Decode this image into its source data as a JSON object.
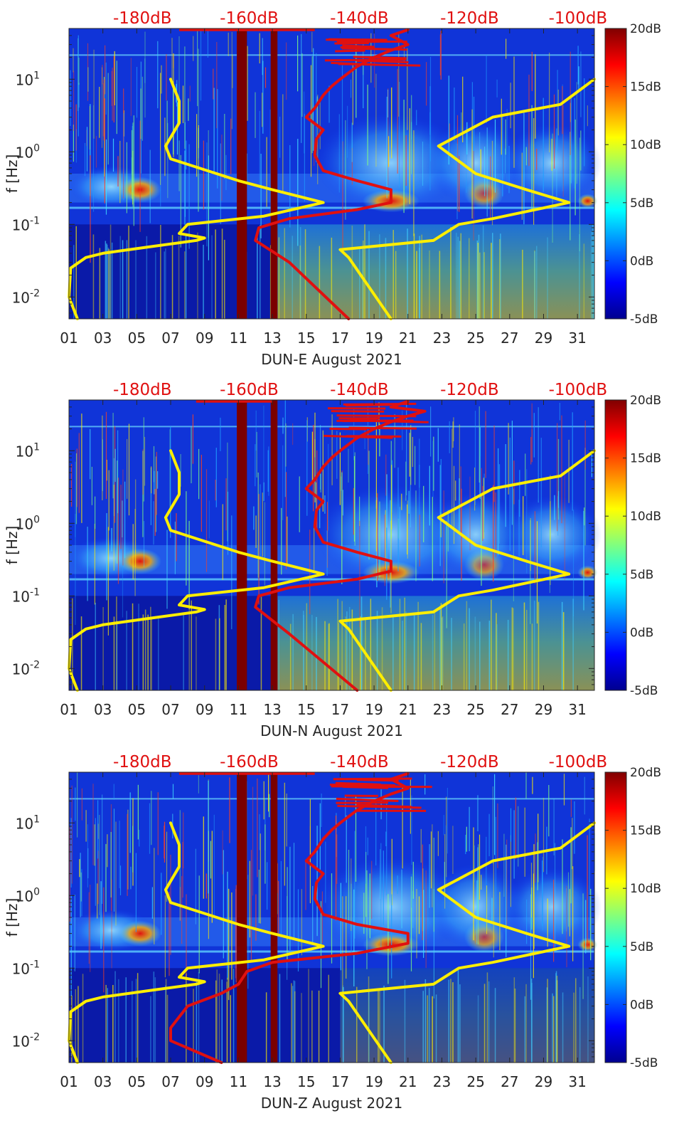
{
  "chart_data": [
    {
      "type": "heatmap",
      "station": "DUN-E",
      "title": "DUN-E August 2021",
      "xlabel": "DUN-E August 2021",
      "ylabel": "f [Hz]",
      "x_ticks": [
        "01",
        "03",
        "05",
        "07",
        "09",
        "11",
        "13",
        "15",
        "17",
        "19",
        "21",
        "23",
        "25",
        "27",
        "29",
        "31"
      ],
      "x_tick_days": [
        1,
        3,
        5,
        7,
        9,
        11,
        13,
        15,
        17,
        19,
        21,
        23,
        25,
        27,
        29,
        31
      ],
      "xlim": [
        1,
        32
      ],
      "y_scale": "log",
      "ylim": [
        0.005,
        50
      ],
      "y_ticks": [
        {
          "label": "10",
          "exp": "-2",
          "value": 0.01
        },
        {
          "label": "10",
          "exp": "-1",
          "value": 0.1
        },
        {
          "label": "10",
          "exp": "0",
          "value": 1
        },
        {
          "label": "10",
          "exp": "1",
          "value": 10
        }
      ],
      "top_ticks": [
        "-180dB",
        "-160dB",
        "-140dB",
        "-120dB",
        "-100dB"
      ],
      "top_tick_days": [
        5.5,
        11.8,
        18.3,
        24.8,
        31.2
      ],
      "colorbar": {
        "labels": [
          "20dB",
          "15dB",
          "10dB",
          "5dB",
          "0dB",
          "-5dB"
        ],
        "min": -5,
        "max": 20
      },
      "gaps": [
        {
          "from": 10.9,
          "to": 11.5
        },
        {
          "from": 12.9,
          "to": 13.3
        }
      ],
      "series": [
        {
          "name": "yellow-low-noise-model",
          "color": "#ffee00",
          "points": [
            [
              1.5,
              0.005
            ],
            [
              1,
              0.01
            ],
            [
              1.1,
              0.025
            ],
            [
              2,
              0.035
            ],
            [
              3,
              0.04
            ],
            [
              6,
              0.05
            ],
            [
              8.5,
              0.06
            ],
            [
              9,
              0.065
            ],
            [
              7.5,
              0.075
            ],
            [
              8,
              0.1
            ],
            [
              12.5,
              0.13
            ],
            [
              16,
              0.2
            ],
            [
              13,
              0.3
            ],
            [
              11,
              0.4
            ],
            [
              7,
              0.8
            ],
            [
              6.7,
              1.2
            ],
            [
              7.5,
              2.5
            ],
            [
              7.5,
              5
            ],
            [
              7,
              10
            ]
          ]
        },
        {
          "name": "yellow-high-noise-model",
          "color": "#ffee00",
          "points": [
            [
              20,
              0.005
            ],
            [
              17.5,
              0.035
            ],
            [
              17,
              0.045
            ],
            [
              22.5,
              0.06
            ],
            [
              24,
              0.1
            ],
            [
              26,
              0.12
            ],
            [
              30.5,
              0.2
            ],
            [
              28,
              0.3
            ],
            [
              25,
              0.5
            ],
            [
              22.8,
              1.2
            ],
            [
              26,
              3
            ],
            [
              30,
              4.5
            ],
            [
              32,
              10
            ]
          ]
        },
        {
          "name": "red-median-psd",
          "color": "#e01010",
          "points": [
            [
              17.5,
              0.005
            ],
            [
              14,
              0.03
            ],
            [
              12,
              0.06
            ],
            [
              12.2,
              0.09
            ],
            [
              14,
              0.12
            ],
            [
              18,
              0.16
            ],
            [
              20,
              0.2
            ],
            [
              20,
              0.3
            ],
            [
              18,
              0.4
            ],
            [
              16,
              0.55
            ],
            [
              15.5,
              0.9
            ],
            [
              15.6,
              1.5
            ],
            [
              16,
              2
            ],
            [
              15,
              3
            ],
            [
              15.5,
              4
            ],
            [
              16,
              6
            ],
            [
              16.5,
              8
            ],
            [
              17,
              10
            ],
            [
              18,
              15
            ],
            [
              19,
              20
            ],
            [
              20,
              25
            ],
            [
              21,
              30
            ],
            [
              20,
              40
            ],
            [
              21,
              48
            ]
          ]
        }
      ]
    },
    {
      "type": "heatmap",
      "station": "DUN-N",
      "title": "DUN-N August 2021",
      "xlabel": "DUN-N August 2021",
      "ylabel": "f [Hz]",
      "x_ticks": [
        "01",
        "03",
        "05",
        "07",
        "09",
        "11",
        "13",
        "15",
        "17",
        "19",
        "21",
        "23",
        "25",
        "27",
        "29",
        "31"
      ],
      "x_tick_days": [
        1,
        3,
        5,
        7,
        9,
        11,
        13,
        15,
        17,
        19,
        21,
        23,
        25,
        27,
        29,
        31
      ],
      "xlim": [
        1,
        32
      ],
      "y_scale": "log",
      "ylim": [
        0.005,
        50
      ],
      "y_ticks": [
        {
          "label": "10",
          "exp": "-2",
          "value": 0.01
        },
        {
          "label": "10",
          "exp": "-1",
          "value": 0.1
        },
        {
          "label": "10",
          "exp": "0",
          "value": 1
        },
        {
          "label": "10",
          "exp": "1",
          "value": 10
        }
      ],
      "top_ticks": [
        "-180dB",
        "-160dB",
        "-140dB",
        "-120dB",
        "-100dB"
      ],
      "top_tick_days": [
        5.5,
        11.8,
        18.3,
        24.8,
        31.2
      ],
      "colorbar": {
        "labels": [
          "20dB",
          "15dB",
          "10dB",
          "5dB",
          "0dB",
          "-5dB"
        ],
        "min": -5,
        "max": 20
      },
      "gaps": [
        {
          "from": 10.9,
          "to": 11.5
        },
        {
          "from": 12.9,
          "to": 13.3
        }
      ],
      "series": [
        {
          "name": "yellow-low-noise-model",
          "color": "#ffee00",
          "points": [
            [
              1.5,
              0.005
            ],
            [
              1,
              0.01
            ],
            [
              1.1,
              0.025
            ],
            [
              2,
              0.035
            ],
            [
              3,
              0.04
            ],
            [
              6,
              0.05
            ],
            [
              8.5,
              0.06
            ],
            [
              9,
              0.065
            ],
            [
              7.5,
              0.075
            ],
            [
              8,
              0.1
            ],
            [
              12.5,
              0.13
            ],
            [
              16,
              0.2
            ],
            [
              13,
              0.3
            ],
            [
              11,
              0.4
            ],
            [
              7,
              0.8
            ],
            [
              6.7,
              1.2
            ],
            [
              7.5,
              2.5
            ],
            [
              7.5,
              5
            ],
            [
              7,
              10
            ]
          ]
        },
        {
          "name": "yellow-high-noise-model",
          "color": "#ffee00",
          "points": [
            [
              20,
              0.005
            ],
            [
              17.5,
              0.035
            ],
            [
              17,
              0.045
            ],
            [
              22.5,
              0.06
            ],
            [
              24,
              0.1
            ],
            [
              26,
              0.12
            ],
            [
              30.5,
              0.2
            ],
            [
              28,
              0.3
            ],
            [
              25,
              0.5
            ],
            [
              22.8,
              1.2
            ],
            [
              26,
              3
            ],
            [
              30,
              4.5
            ],
            [
              32,
              10
            ]
          ]
        },
        {
          "name": "red-median-psd",
          "color": "#e01010",
          "points": [
            [
              18,
              0.005
            ],
            [
              14,
              0.03
            ],
            [
              12,
              0.07
            ],
            [
              12.2,
              0.1
            ],
            [
              14,
              0.13
            ],
            [
              18,
              0.17
            ],
            [
              20,
              0.22
            ],
            [
              20,
              0.3
            ],
            [
              18,
              0.4
            ],
            [
              16,
              0.55
            ],
            [
              15.5,
              0.9
            ],
            [
              15.6,
              1.5
            ],
            [
              16,
              2
            ],
            [
              15,
              3
            ],
            [
              15.5,
              4
            ],
            [
              16,
              6
            ],
            [
              16.5,
              8
            ],
            [
              17,
              10
            ],
            [
              18,
              15
            ],
            [
              19,
              20
            ],
            [
              20,
              25
            ],
            [
              21,
              30
            ],
            [
              22,
              35
            ],
            [
              20,
              40
            ],
            [
              21,
              48
            ]
          ]
        }
      ]
    },
    {
      "type": "heatmap",
      "station": "DUN-Z",
      "title": "DUN-Z August 2021",
      "xlabel": "DUN-Z August 2021",
      "ylabel": "f [Hz]",
      "x_ticks": [
        "01",
        "03",
        "05",
        "07",
        "09",
        "11",
        "13",
        "15",
        "17",
        "19",
        "21",
        "23",
        "25",
        "27",
        "29",
        "31"
      ],
      "x_tick_days": [
        1,
        3,
        5,
        7,
        9,
        11,
        13,
        15,
        17,
        19,
        21,
        23,
        25,
        27,
        29,
        31
      ],
      "xlim": [
        1,
        32
      ],
      "y_scale": "log",
      "ylim": [
        0.005,
        50
      ],
      "y_ticks": [
        {
          "label": "10",
          "exp": "-2",
          "value": 0.01
        },
        {
          "label": "10",
          "exp": "-1",
          "value": 0.1
        },
        {
          "label": "10",
          "exp": "0",
          "value": 1
        },
        {
          "label": "10",
          "exp": "1",
          "value": 10
        }
      ],
      "top_ticks": [
        "-180dB",
        "-160dB",
        "-140dB",
        "-120dB",
        "-100dB"
      ],
      "top_tick_days": [
        5.5,
        11.8,
        18.3,
        24.8,
        31.2
      ],
      "colorbar": {
        "labels": [
          "20dB",
          "15dB",
          "10dB",
          "5dB",
          "0dB",
          "-5dB"
        ],
        "min": -5,
        "max": 20
      },
      "gaps": [
        {
          "from": 10.9,
          "to": 11.5
        },
        {
          "from": 12.9,
          "to": 13.3
        }
      ],
      "series": [
        {
          "name": "yellow-low-noise-model",
          "color": "#ffee00",
          "points": [
            [
              1.5,
              0.005
            ],
            [
              1,
              0.01
            ],
            [
              1.1,
              0.025
            ],
            [
              2,
              0.035
            ],
            [
              3,
              0.04
            ],
            [
              6,
              0.05
            ],
            [
              8.5,
              0.06
            ],
            [
              9,
              0.065
            ],
            [
              7.5,
              0.075
            ],
            [
              8,
              0.1
            ],
            [
              12.5,
              0.13
            ],
            [
              16,
              0.2
            ],
            [
              13,
              0.3
            ],
            [
              11,
              0.4
            ],
            [
              7,
              0.8
            ],
            [
              6.7,
              1.2
            ],
            [
              7.5,
              2.5
            ],
            [
              7.5,
              5
            ],
            [
              7,
              10
            ]
          ]
        },
        {
          "name": "yellow-high-noise-model",
          "color": "#ffee00",
          "points": [
            [
              20,
              0.005
            ],
            [
              17.5,
              0.035
            ],
            [
              17,
              0.045
            ],
            [
              22.5,
              0.06
            ],
            [
              24,
              0.1
            ],
            [
              26,
              0.12
            ],
            [
              30.5,
              0.2
            ],
            [
              28,
              0.3
            ],
            [
              25,
              0.5
            ],
            [
              22.8,
              1.2
            ],
            [
              26,
              3
            ],
            [
              30,
              4.5
            ],
            [
              32,
              10
            ]
          ]
        },
        {
          "name": "red-median-psd",
          "color": "#e01010",
          "points": [
            [
              10,
              0.005
            ],
            [
              7,
              0.01
            ],
            [
              7,
              0.015
            ],
            [
              8,
              0.03
            ],
            [
              10,
              0.045
            ],
            [
              11,
              0.06
            ],
            [
              11.5,
              0.09
            ],
            [
              13,
              0.12
            ],
            [
              18,
              0.16
            ],
            [
              21,
              0.22
            ],
            [
              21,
              0.3
            ],
            [
              18,
              0.4
            ],
            [
              16,
              0.55
            ],
            [
              15.5,
              0.9
            ],
            [
              15.6,
              1.5
            ],
            [
              16,
              2
            ],
            [
              15,
              3
            ],
            [
              15.5,
              4
            ],
            [
              16,
              6
            ],
            [
              16.5,
              8
            ],
            [
              17,
              10
            ],
            [
              18,
              15
            ],
            [
              19,
              20
            ],
            [
              20,
              25
            ],
            [
              21,
              30
            ],
            [
              20,
              40
            ],
            [
              21,
              48
            ]
          ]
        }
      ]
    }
  ]
}
